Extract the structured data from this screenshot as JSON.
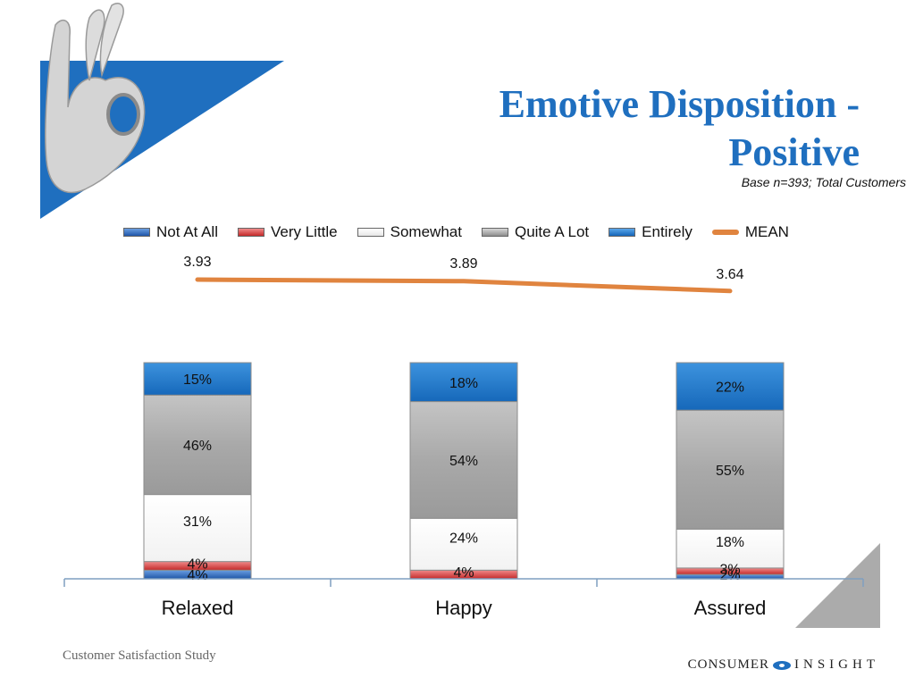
{
  "title": "Emotive Disposition - Positive",
  "subtitle": "Base n=393; Total Customers",
  "footer": {
    "left": "Customer Satisfaction Study",
    "brand_left": "CONSUMER",
    "brand_right": "INSIGHT"
  },
  "colors": {
    "not_at_all": "#2e63b5",
    "very_little": "#d83b3b",
    "somewhat": "#ffffff",
    "quite_a_lot": "#a9a9a9",
    "entirely": "#1977c9",
    "mean": "#e0843f",
    "title": "#1f6fbf"
  },
  "chart_data": {
    "type": "bar",
    "stacked": true,
    "categories": [
      "Relaxed",
      "Happy",
      "Assured"
    ],
    "series": [
      {
        "name": "Not At All",
        "values": [
          4,
          0,
          2
        ],
        "labels": [
          "4%",
          "",
          "2%"
        ],
        "color": "#2e63b5"
      },
      {
        "name": "Very Little",
        "values": [
          4,
          4,
          3
        ],
        "labels": [
          "4%",
          "4%",
          "3%"
        ],
        "color": "#d83b3b"
      },
      {
        "name": "Somewhat",
        "values": [
          31,
          24,
          18
        ],
        "labels": [
          "31%",
          "24%",
          "18%"
        ],
        "color": "#ffffff"
      },
      {
        "name": "Quite A Lot",
        "values": [
          46,
          54,
          55
        ],
        "labels": [
          "46%",
          "54%",
          "55%"
        ],
        "color": "#a9a9a9"
      },
      {
        "name": "Entirely",
        "values": [
          15,
          18,
          22
        ],
        "labels": [
          "15%",
          "18%",
          "22%"
        ],
        "color": "#1977c9"
      }
    ],
    "mean": {
      "name": "MEAN",
      "values": [
        3.93,
        3.89,
        3.64
      ],
      "labels": [
        "3.93",
        "3.89",
        "3.64"
      ],
      "color": "#e0843f"
    },
    "legend": [
      "Not At All",
      "Very Little",
      "Somewhat",
      "Quite A Lot",
      "Entirely",
      "MEAN"
    ],
    "legend_position": "top",
    "grid": false
  }
}
